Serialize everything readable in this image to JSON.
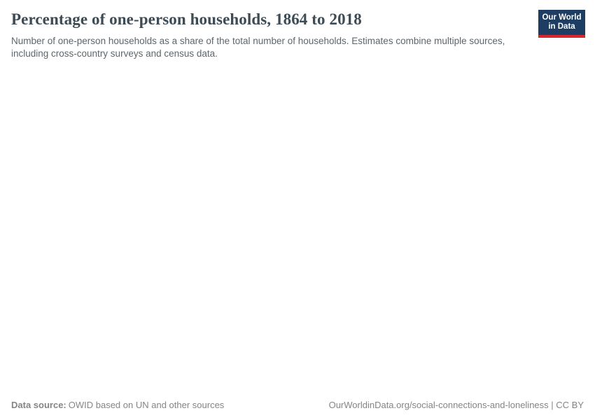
{
  "colors": {
    "background": "#ffffff",
    "title_text": "#3d4b55",
    "subtitle_text": "#5e666b",
    "footer_text": "#858585",
    "logo_background": "#1d3d63",
    "logo_accent_red": "#d5292f"
  },
  "header": {
    "title": "Percentage of one-person households, 1864 to 2018",
    "subtitle": "Number of one-person households as a share of the total number of households. Estimates combine multiple sources, including cross-country surveys and census data.",
    "logo": {
      "line1": "Our World",
      "line2": "in Data"
    }
  },
  "chart_data": {
    "type": "line",
    "title": "Percentage of one-person households, 1864 to 2018",
    "subtitle": "Number of one-person households as a share of the total number of households. Estimates combine multiple sources, including cross-country surveys and census data.",
    "x_range_implied_by_title": [
      1864,
      2018
    ],
    "series": [],
    "plot_area_state": "empty — no axes, gridlines, or data points are rendered in the screenshot"
  },
  "footer": {
    "datasource_label": "Data source:",
    "datasource_value": "OWID based on UN and other sources",
    "link": "OurWorldinData.org/social-connections-and-loneliness | CC BY"
  }
}
